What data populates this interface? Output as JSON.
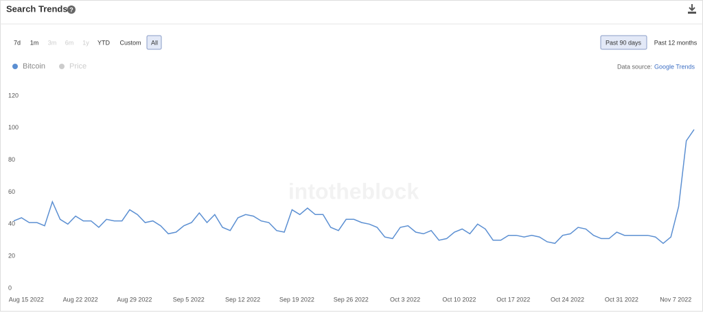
{
  "header": {
    "title": "Search Trends"
  },
  "range_buttons": [
    "7d",
    "1m",
    "3m",
    "6m",
    "1y",
    "YTD",
    "Custom",
    "All"
  ],
  "period_buttons": [
    "Past 90 days",
    "Past 12 months"
  ],
  "source": {
    "label": "Data source:",
    "link": "Google Trends"
  },
  "legend_inactive": "Price",
  "watermark": "intotheblock",
  "chart_data": {
    "type": "line",
    "categories": [
      null,
      "Aug 15 2022",
      null,
      null,
      null,
      null,
      null,
      null,
      "Aug 22 2022",
      null,
      null,
      null,
      null,
      null,
      null,
      "Aug 29 2022",
      null,
      null,
      null,
      null,
      null,
      null,
      "Sep 5 2022",
      null,
      null,
      null,
      null,
      null,
      null,
      "Sep 12 2022",
      null,
      null,
      null,
      null,
      null,
      null,
      "Sep 19 2022",
      null,
      null,
      null,
      null,
      null,
      null,
      "Sep 26 2022",
      null,
      null,
      null,
      null,
      null,
      null,
      "Oct 3 2022",
      null,
      null,
      null,
      null,
      null,
      null,
      "Oct 10 2022",
      null,
      null,
      null,
      null,
      null,
      null,
      "Oct 17 2022",
      null,
      null,
      null,
      null,
      null,
      null,
      "Oct 24 2022",
      null,
      null,
      null,
      null,
      null,
      null,
      "Oct 31 2022",
      null,
      null,
      null,
      null,
      null,
      null,
      "Nov 7 2022",
      null,
      null,
      null
    ],
    "series": [
      {
        "name": "Bitcoin",
        "color": "#5b8fd2",
        "values": [
          42,
          44,
          41,
          41,
          39,
          54,
          43,
          40,
          45,
          42,
          42,
          38,
          43,
          42,
          42,
          49,
          46,
          41,
          42,
          39,
          34,
          35,
          39,
          41,
          47,
          41,
          46,
          38,
          36,
          44,
          46,
          45,
          42,
          41,
          36,
          35,
          49,
          46,
          50,
          46,
          46,
          38,
          36,
          43,
          43,
          41,
          40,
          38,
          32,
          31,
          38,
          39,
          35,
          34,
          36,
          30,
          31,
          35,
          37,
          34,
          40,
          37,
          30,
          30,
          33,
          33,
          32,
          33,
          32,
          29,
          28,
          33,
          34,
          38,
          37,
          33,
          31,
          31,
          35,
          33,
          33,
          33,
          33,
          32,
          28,
          32,
          51,
          92,
          99
        ]
      }
    ],
    "ylim": [
      0,
      120
    ],
    "yticks": [
      0,
      20,
      40,
      60,
      80,
      100,
      120
    ],
    "grid": false,
    "legend": "top-left"
  }
}
